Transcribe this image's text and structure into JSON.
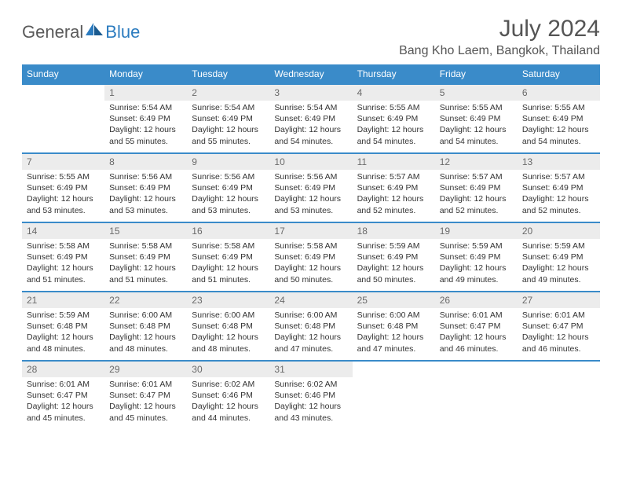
{
  "brand": {
    "word1": "General",
    "word2": "Blue"
  },
  "title": "July 2024",
  "location": "Bang Kho Laem, Bangkok, Thailand",
  "colors": {
    "header_bg": "#3a8bc9",
    "header_text": "#ffffff",
    "daynum_bg": "#ececec",
    "daynum_text": "#6a6a6a",
    "row_border": "#3a8bc9",
    "body_text": "#333333",
    "title_text": "#555555",
    "brand_gray": "#5a5a5a",
    "brand_blue": "#2b7bbf"
  },
  "weekdays": [
    "Sunday",
    "Monday",
    "Tuesday",
    "Wednesday",
    "Thursday",
    "Friday",
    "Saturday"
  ],
  "weeks": [
    [
      {
        "empty": true
      },
      {
        "day": "1",
        "sunrise": "5:54 AM",
        "sunset": "6:49 PM",
        "daylight": "12 hours and 55 minutes."
      },
      {
        "day": "2",
        "sunrise": "5:54 AM",
        "sunset": "6:49 PM",
        "daylight": "12 hours and 55 minutes."
      },
      {
        "day": "3",
        "sunrise": "5:54 AM",
        "sunset": "6:49 PM",
        "daylight": "12 hours and 54 minutes."
      },
      {
        "day": "4",
        "sunrise": "5:55 AM",
        "sunset": "6:49 PM",
        "daylight": "12 hours and 54 minutes."
      },
      {
        "day": "5",
        "sunrise": "5:55 AM",
        "sunset": "6:49 PM",
        "daylight": "12 hours and 54 minutes."
      },
      {
        "day": "6",
        "sunrise": "5:55 AM",
        "sunset": "6:49 PM",
        "daylight": "12 hours and 54 minutes."
      }
    ],
    [
      {
        "day": "7",
        "sunrise": "5:55 AM",
        "sunset": "6:49 PM",
        "daylight": "12 hours and 53 minutes."
      },
      {
        "day": "8",
        "sunrise": "5:56 AM",
        "sunset": "6:49 PM",
        "daylight": "12 hours and 53 minutes."
      },
      {
        "day": "9",
        "sunrise": "5:56 AM",
        "sunset": "6:49 PM",
        "daylight": "12 hours and 53 minutes."
      },
      {
        "day": "10",
        "sunrise": "5:56 AM",
        "sunset": "6:49 PM",
        "daylight": "12 hours and 53 minutes."
      },
      {
        "day": "11",
        "sunrise": "5:57 AM",
        "sunset": "6:49 PM",
        "daylight": "12 hours and 52 minutes."
      },
      {
        "day": "12",
        "sunrise": "5:57 AM",
        "sunset": "6:49 PM",
        "daylight": "12 hours and 52 minutes."
      },
      {
        "day": "13",
        "sunrise": "5:57 AM",
        "sunset": "6:49 PM",
        "daylight": "12 hours and 52 minutes."
      }
    ],
    [
      {
        "day": "14",
        "sunrise": "5:58 AM",
        "sunset": "6:49 PM",
        "daylight": "12 hours and 51 minutes."
      },
      {
        "day": "15",
        "sunrise": "5:58 AM",
        "sunset": "6:49 PM",
        "daylight": "12 hours and 51 minutes."
      },
      {
        "day": "16",
        "sunrise": "5:58 AM",
        "sunset": "6:49 PM",
        "daylight": "12 hours and 51 minutes."
      },
      {
        "day": "17",
        "sunrise": "5:58 AM",
        "sunset": "6:49 PM",
        "daylight": "12 hours and 50 minutes."
      },
      {
        "day": "18",
        "sunrise": "5:59 AM",
        "sunset": "6:49 PM",
        "daylight": "12 hours and 50 minutes."
      },
      {
        "day": "19",
        "sunrise": "5:59 AM",
        "sunset": "6:49 PM",
        "daylight": "12 hours and 49 minutes."
      },
      {
        "day": "20",
        "sunrise": "5:59 AM",
        "sunset": "6:49 PM",
        "daylight": "12 hours and 49 minutes."
      }
    ],
    [
      {
        "day": "21",
        "sunrise": "5:59 AM",
        "sunset": "6:48 PM",
        "daylight": "12 hours and 48 minutes."
      },
      {
        "day": "22",
        "sunrise": "6:00 AM",
        "sunset": "6:48 PM",
        "daylight": "12 hours and 48 minutes."
      },
      {
        "day": "23",
        "sunrise": "6:00 AM",
        "sunset": "6:48 PM",
        "daylight": "12 hours and 48 minutes."
      },
      {
        "day": "24",
        "sunrise": "6:00 AM",
        "sunset": "6:48 PM",
        "daylight": "12 hours and 47 minutes."
      },
      {
        "day": "25",
        "sunrise": "6:00 AM",
        "sunset": "6:48 PM",
        "daylight": "12 hours and 47 minutes."
      },
      {
        "day": "26",
        "sunrise": "6:01 AM",
        "sunset": "6:47 PM",
        "daylight": "12 hours and 46 minutes."
      },
      {
        "day": "27",
        "sunrise": "6:01 AM",
        "sunset": "6:47 PM",
        "daylight": "12 hours and 46 minutes."
      }
    ],
    [
      {
        "day": "28",
        "sunrise": "6:01 AM",
        "sunset": "6:47 PM",
        "daylight": "12 hours and 45 minutes."
      },
      {
        "day": "29",
        "sunrise": "6:01 AM",
        "sunset": "6:47 PM",
        "daylight": "12 hours and 45 minutes."
      },
      {
        "day": "30",
        "sunrise": "6:02 AM",
        "sunset": "6:46 PM",
        "daylight": "12 hours and 44 minutes."
      },
      {
        "day": "31",
        "sunrise": "6:02 AM",
        "sunset": "6:46 PM",
        "daylight": "12 hours and 43 minutes."
      },
      {
        "empty": true
      },
      {
        "empty": true
      },
      {
        "empty": true
      }
    ]
  ],
  "labels": {
    "sunrise_prefix": "Sunrise: ",
    "sunset_prefix": "Sunset: ",
    "daylight_prefix": "Daylight: "
  }
}
